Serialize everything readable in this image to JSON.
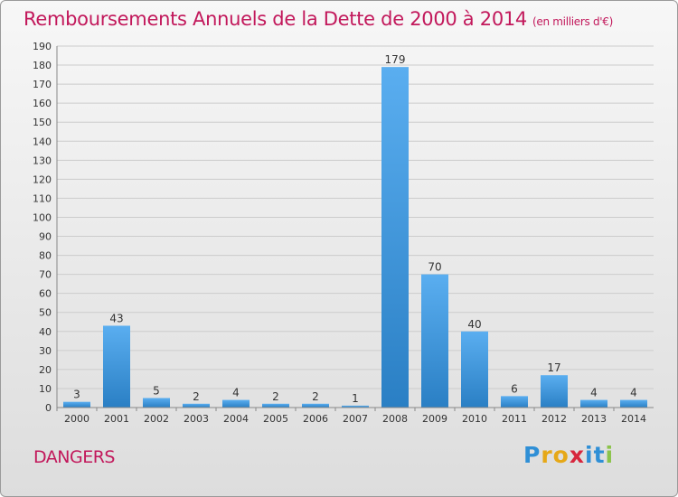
{
  "header": {
    "title": "Remboursements Annuels de la Dette de 2000 à 2014",
    "unit": "(en milliers d'€)"
  },
  "footer": {
    "town": "DANGERS",
    "logo_letters": [
      "P",
      "r",
      "o",
      "x",
      "i",
      "t",
      "i"
    ],
    "logo_colors": [
      "#2f8fd6",
      "#e6a817",
      "#e6a817",
      "#d7263d",
      "#2f8fd6",
      "#2f8fd6",
      "#8bc34a"
    ]
  },
  "chart_data": {
    "type": "bar",
    "title": "Remboursements Annuels de la Dette de 2000 à 2014",
    "categories": [
      "2000",
      "2001",
      "2002",
      "2003",
      "2004",
      "2005",
      "2006",
      "2007",
      "2008",
      "2009",
      "2010",
      "2011",
      "2012",
      "2013",
      "2014"
    ],
    "values": [
      3,
      43,
      5,
      2,
      4,
      2,
      2,
      1,
      179,
      70,
      40,
      6,
      17,
      4,
      4
    ],
    "data_labels": [
      "3",
      "43",
      "5",
      "2",
      "4",
      "2",
      "2",
      "1",
      "179",
      "70",
      "40",
      "6",
      "17",
      "4",
      "4"
    ],
    "ylim": [
      0,
      190
    ],
    "yticks": [
      0,
      10,
      20,
      30,
      40,
      50,
      60,
      70,
      80,
      90,
      100,
      110,
      120,
      130,
      140,
      150,
      160,
      170,
      180,
      190
    ],
    "grid": true,
    "colors": {
      "bar_light": "#5aaef0",
      "bar_dark": "#2a7fc4",
      "grid": "#cccccc",
      "text": "#333333"
    }
  }
}
